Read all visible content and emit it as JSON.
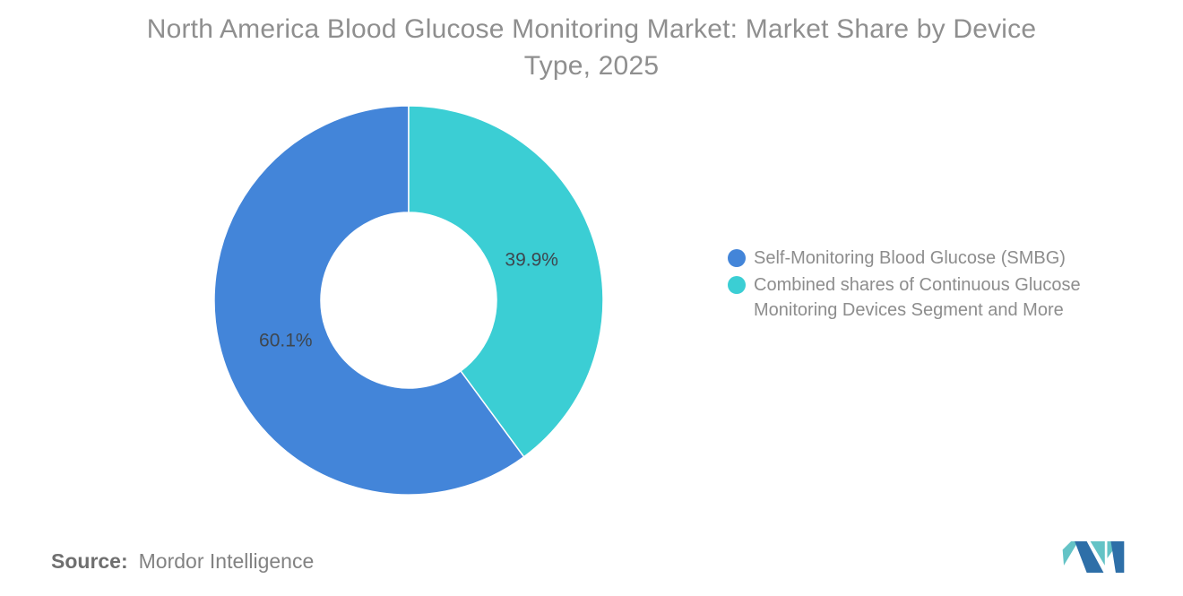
{
  "title": {
    "line1": "North America Blood Glucose Monitoring Market: Market Share by Device",
    "line2": "Type, 2025"
  },
  "chart_data": {
    "type": "pie",
    "subtype": "donut",
    "title": "North America Blood Glucose Monitoring Market: Market Share by Device Type, 2025",
    "slices": [
      {
        "name": "Self-Monitoring Blood Glucose (SMBG)",
        "value": 60.1,
        "label": "60.1%",
        "color": "#4385d9"
      },
      {
        "name": "Combined shares of Continuous Glucose Monitoring Devices Segment and More",
        "value": 39.9,
        "label": "39.9%",
        "color": "#3bced4"
      }
    ],
    "total": 100,
    "start_angle_deg": -90,
    "direction": "counterclockwise",
    "inner_radius_ratio": 0.45,
    "legend_position": "right",
    "slice_label_color": "#3e464e",
    "grid": false
  },
  "source": {
    "label": "Source:",
    "value": "Mordor Intelligence"
  },
  "logo": {
    "name": "mordor-intelligence-logo",
    "teal": "#64c3c6",
    "blue": "#2e6fa8"
  }
}
